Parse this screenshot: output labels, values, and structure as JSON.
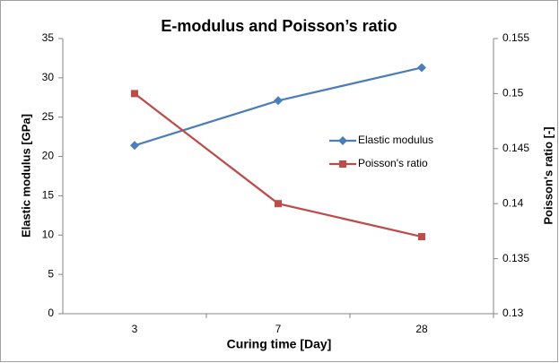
{
  "chart_data": {
    "type": "line",
    "title": "E-modulus and Poisson’s ratio",
    "x_label": "Curing time [Day]",
    "y_label": "Elastic modulus [GPa]",
    "y2_label": "Poisson's ratio [-]",
    "categories": [
      "3",
      "7",
      "28"
    ],
    "series": [
      {
        "name": "Elastic modulus",
        "color": "#4a7ebb",
        "marker": "diamond",
        "values": [
          21.4,
          27.1,
          31.3
        ]
      },
      {
        "name": "Poisson's ratio",
        "color": "#be4b48",
        "marker": "square",
        "axis": "y2",
        "values": [
          0.15,
          0.14,
          0.137
        ]
      }
    ],
    "ylim": [
      0,
      35
    ],
    "yticks": [
      0,
      5,
      10,
      15,
      20,
      25,
      30,
      35
    ],
    "y2lim": [
      0.13,
      0.155
    ],
    "y2ticks": [
      0.13,
      0.135,
      0.14,
      0.145,
      0.15,
      0.155
    ],
    "grid": false,
    "legend": "right"
  }
}
